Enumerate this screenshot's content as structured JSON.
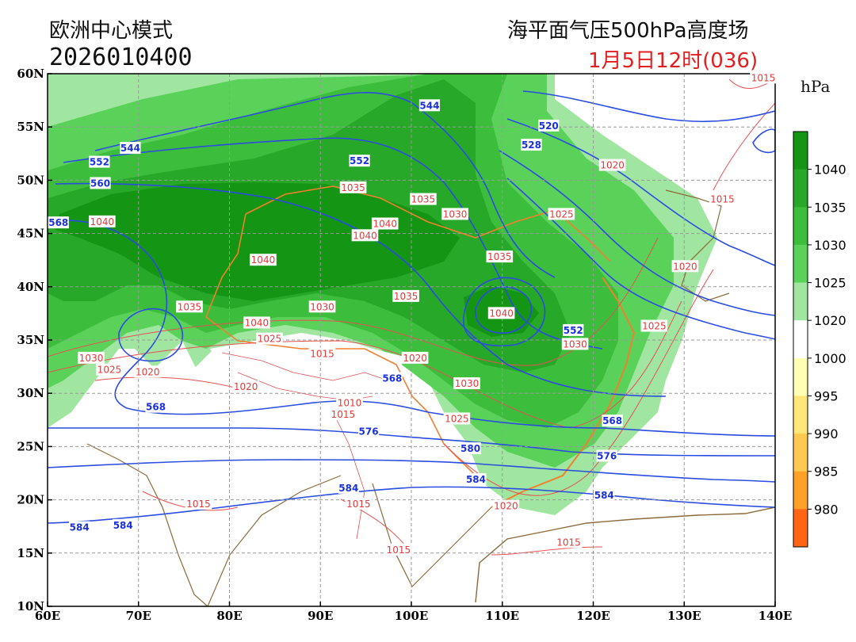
{
  "header": {
    "model": "欧洲中心模式",
    "init_time": "2026010400",
    "product": "海平面气压500hPa高度场",
    "valid_time": "1月5日12时(036)",
    "unit": "hPa"
  },
  "map": {
    "lon_range": [
      60,
      140
    ],
    "lat_range": [
      10,
      60
    ],
    "lon_ticks": [
      "60E",
      "70E",
      "80E",
      "90E",
      "100E",
      "110E",
      "120E",
      "130E",
      "140E"
    ],
    "lat_ticks": [
      "10N",
      "15N",
      "20N",
      "25N",
      "30N",
      "35N",
      "40N",
      "45N",
      "50N",
      "55N",
      "60N"
    ],
    "grid": true
  },
  "colorbar": {
    "labels": [
      "1040",
      "1035",
      "1030",
      "1025",
      "1020",
      "1000",
      "995",
      "990",
      "985",
      "980"
    ],
    "colors": [
      "#149614",
      "#28a828",
      "#3cbe3c",
      "#5ad25a",
      "#a0e6a0",
      "#ffffff",
      "#ffffb4",
      "#ffe678",
      "#ffc850",
      "#ffa028",
      "#ff6414"
    ]
  },
  "height_labels": [
    {
      "text": "544",
      "lon": 102,
      "lat": 57
    },
    {
      "text": "544",
      "lon": 69.1,
      "lat": 53
    },
    {
      "text": "552",
      "lon": 65.7,
      "lat": 51.7
    },
    {
      "text": "560",
      "lon": 65.8,
      "lat": 49.7
    },
    {
      "text": "568",
      "lon": 61.2,
      "lat": 46
    },
    {
      "text": "552",
      "lon": 94.3,
      "lat": 51.8
    },
    {
      "text": "520",
      "lon": 115.1,
      "lat": 55.1
    },
    {
      "text": "528",
      "lon": 113.2,
      "lat": 53.3
    },
    {
      "text": "552",
      "lon": 117.8,
      "lat": 35.9
    },
    {
      "text": "568",
      "lon": 97.9,
      "lat": 31.4
    },
    {
      "text": "568",
      "lon": 71.9,
      "lat": 28.7
    },
    {
      "text": "576",
      "lon": 95.3,
      "lat": 26.4
    },
    {
      "text": "580",
      "lon": 106.5,
      "lat": 24.8
    },
    {
      "text": "584",
      "lon": 107.1,
      "lat": 21.9
    },
    {
      "text": "584",
      "lon": 93.1,
      "lat": 21.1
    },
    {
      "text": "584",
      "lon": 63.5,
      "lat": 17.4
    },
    {
      "text": "584",
      "lon": 68.3,
      "lat": 17.6
    },
    {
      "text": "568",
      "lon": 122.1,
      "lat": 27.4
    },
    {
      "text": "576",
      "lon": 121.5,
      "lat": 24.1
    },
    {
      "text": "584",
      "lon": 121.2,
      "lat": 20.4
    }
  ],
  "pressure_labels": [
    {
      "text": "1040",
      "lon": 66,
      "lat": 46.1
    },
    {
      "text": "1035",
      "lon": 93.6,
      "lat": 49.3
    },
    {
      "text": "1035",
      "lon": 101.3,
      "lat": 48.2
    },
    {
      "text": "1040",
      "lon": 97.1,
      "lat": 45.9
    },
    {
      "text": "1040",
      "lon": 94.9,
      "lat": 44.8
    },
    {
      "text": "1030",
      "lon": 104.8,
      "lat": 46.8
    },
    {
      "text": "1025",
      "lon": 116.5,
      "lat": 46.8
    },
    {
      "text": "1040",
      "lon": 83.7,
      "lat": 42.5
    },
    {
      "text": "1035",
      "lon": 109.7,
      "lat": 42.8
    },
    {
      "text": "1035",
      "lon": 99.4,
      "lat": 39.1
    },
    {
      "text": "1030",
      "lon": 90.2,
      "lat": 38.1
    },
    {
      "text": "1035",
      "lon": 75.6,
      "lat": 38.1
    },
    {
      "text": "1040",
      "lon": 109.9,
      "lat": 37.5
    },
    {
      "text": "1040",
      "lon": 83,
      "lat": 36.6
    },
    {
      "text": "1025",
      "lon": 84.4,
      "lat": 35.1
    },
    {
      "text": "1015",
      "lon": 90.2,
      "lat": 33.7
    },
    {
      "text": "1030",
      "lon": 118,
      "lat": 34.6
    },
    {
      "text": "1020",
      "lon": 100.4,
      "lat": 33.3
    },
    {
      "text": "1030",
      "lon": 64.8,
      "lat": 33.3
    },
    {
      "text": "1025",
      "lon": 66.8,
      "lat": 32.2
    },
    {
      "text": "1020",
      "lon": 71,
      "lat": 32
    },
    {
      "text": "1030",
      "lon": 106.1,
      "lat": 30.9
    },
    {
      "text": "1020",
      "lon": 81.8,
      "lat": 30.6
    },
    {
      "text": "1010",
      "lon": 93.2,
      "lat": 29.1
    },
    {
      "text": "1015",
      "lon": 92.5,
      "lat": 28
    },
    {
      "text": "1025",
      "lon": 105,
      "lat": 27.6
    },
    {
      "text": "1020",
      "lon": 110.4,
      "lat": 19.4
    },
    {
      "text": "1015",
      "lon": 76.6,
      "lat": 19.6
    },
    {
      "text": "1015",
      "lon": 94.2,
      "lat": 19.6
    },
    {
      "text": "1015",
      "lon": 98.6,
      "lat": 15.3
    },
    {
      "text": "1015",
      "lon": 117.3,
      "lat": 16
    },
    {
      "text": "1020",
      "lon": 122.1,
      "lat": 51.4
    },
    {
      "text": "1015",
      "lon": 134.2,
      "lat": 48.2
    },
    {
      "text": "1015",
      "lon": 138.7,
      "lat": 59.6
    },
    {
      "text": "1025",
      "lon": 126.7,
      "lat": 36.3
    },
    {
      "text": "1020",
      "lon": 130.1,
      "lat": 41.9
    }
  ]
}
